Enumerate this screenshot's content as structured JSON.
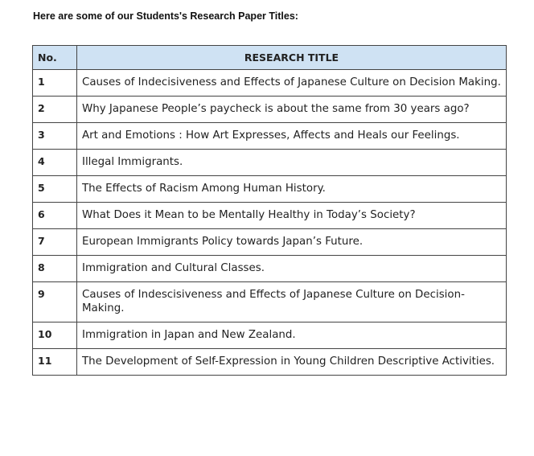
{
  "heading": "Here are some of our Students's Research  Paper Titles:",
  "table": {
    "headers": [
      "No.",
      "RESEARCH TITLE"
    ],
    "header_color": "#cfe2f3",
    "rows": [
      {
        "no": "1",
        "title": "Causes of Indecisiveness and Effects of Japanese Culture on Decision Making."
      },
      {
        "no": "2",
        "title": "Why Japanese People’s paycheck is about the same from 30 years ago?"
      },
      {
        "no": "3",
        "title": "Art and Emotions : How Art Expresses, Affects and Heals our Feelings."
      },
      {
        "no": "4",
        "title": "Illegal Immigrants."
      },
      {
        "no": "5",
        "title": "The Effects of Racism Among Human History."
      },
      {
        "no": "6",
        "title": "What Does it Mean to be Mentally Healthy in Today’s Society?"
      },
      {
        "no": "7",
        "title": "European Immigrants Policy towards Japan’s Future."
      },
      {
        "no": "8",
        "title": "Immigration and Cultural Classes."
      },
      {
        "no": "9",
        "title": "Causes of Indescisiveness and Effects of Japanese Culture on Decision-Making."
      },
      {
        "no": "10",
        "title": "Immigration in Japan and New Zealand."
      },
      {
        "no": "11",
        "title": "The Development of Self-Expression in Young Children Descriptive Activities."
      }
    ]
  }
}
